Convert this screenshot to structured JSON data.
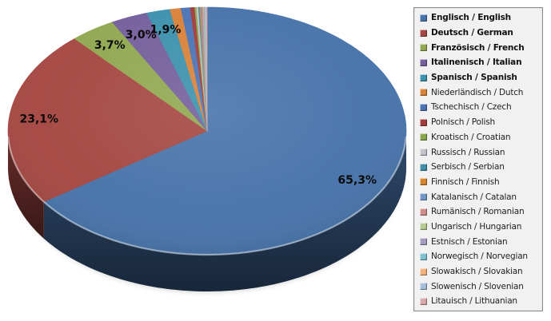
{
  "chart_data": {
    "type": "pie",
    "projection": "3d",
    "title": "",
    "legend_position": "right",
    "value_unit": "%",
    "number_format": "german-decimal-comma",
    "shown_data_labels": [
      "65,3%",
      "23,1%",
      "3,7%",
      "3,0%",
      "1,9%"
    ],
    "slices": [
      {
        "legend": "Englisch / English",
        "value": 65.3,
        "label": "65,3%",
        "color": "#4874AA",
        "bold": true
      },
      {
        "legend": "Deutsch / German",
        "value": 23.1,
        "label": "23,1%",
        "color": "#A54843",
        "bold": true
      },
      {
        "legend": "Französisch / French",
        "value": 3.7,
        "label": "3,7%",
        "color": "#92A852",
        "bold": true
      },
      {
        "legend": "Italinenisch / Italian",
        "value": 3.0,
        "label": "3,0%",
        "color": "#75609C",
        "bold": true
      },
      {
        "legend": "Spanisch / Spanish",
        "value": 1.9,
        "label": "1,9%",
        "color": "#3D92AE",
        "bold": true
      },
      {
        "legend": "Niederländisch / Dutch",
        "value": 0.9,
        "label": "",
        "color": "#D9823B",
        "bold": false
      },
      {
        "legend": "Tschechisch / Czech",
        "value": 0.75,
        "label": "",
        "color": "#4C74B5",
        "bold": false
      },
      {
        "legend": "Polnisch / Polish",
        "value": 0.35,
        "label": "",
        "color": "#A33E3C",
        "bold": false
      },
      {
        "legend": "Kroatisch / Croatian",
        "value": 0.15,
        "label": "",
        "color": "#89A84E",
        "bold": false
      },
      {
        "legend": "Russisch / Russian",
        "value": 0.15,
        "label": "",
        "color": "#C6C2CC",
        "bold": false
      },
      {
        "legend": "Serbisch / Serbian",
        "value": 0.1,
        "label": "",
        "color": "#418FA9",
        "bold": false
      },
      {
        "legend": "Finnisch / Finnish",
        "value": 0.1,
        "label": "",
        "color": "#D8842F",
        "bold": false
      },
      {
        "legend": "Katalanisch / Catalan",
        "value": 0.1,
        "label": "",
        "color": "#7297C5",
        "bold": false
      },
      {
        "legend": "Rumänisch / Romanian",
        "value": 0.1,
        "label": "",
        "color": "#CE8E8C",
        "bold": false
      },
      {
        "legend": "Ungarisch / Hungarian",
        "value": 0.05,
        "label": "",
        "color": "#B8CC92",
        "bold": false
      },
      {
        "legend": "Estnisch / Estonian",
        "value": 0.05,
        "label": "",
        "color": "#A79CBE",
        "bold": false
      },
      {
        "legend": "Norwegisch / Norvegian",
        "value": 0.05,
        "label": "",
        "color": "#82C0D4",
        "bold": false
      },
      {
        "legend": "Slowakisch / Slovakian",
        "value": 0.05,
        "label": "",
        "color": "#F4B17C",
        "bold": false
      },
      {
        "legend": "Slowenisch / Slovenian",
        "value": 0.05,
        "label": "",
        "color": "#A9BFDC",
        "bold": false
      },
      {
        "legend": "Litauisch / Lithuanian",
        "value": 0.05,
        "label": "",
        "color": "#D9ABAA",
        "bold": false
      }
    ]
  },
  "legend_style": {
    "background": "#F1F1F1",
    "border": "#8A8A8A",
    "text_color": "#1E1E1E"
  },
  "label_style": {
    "color": "#0A0A0A"
  }
}
